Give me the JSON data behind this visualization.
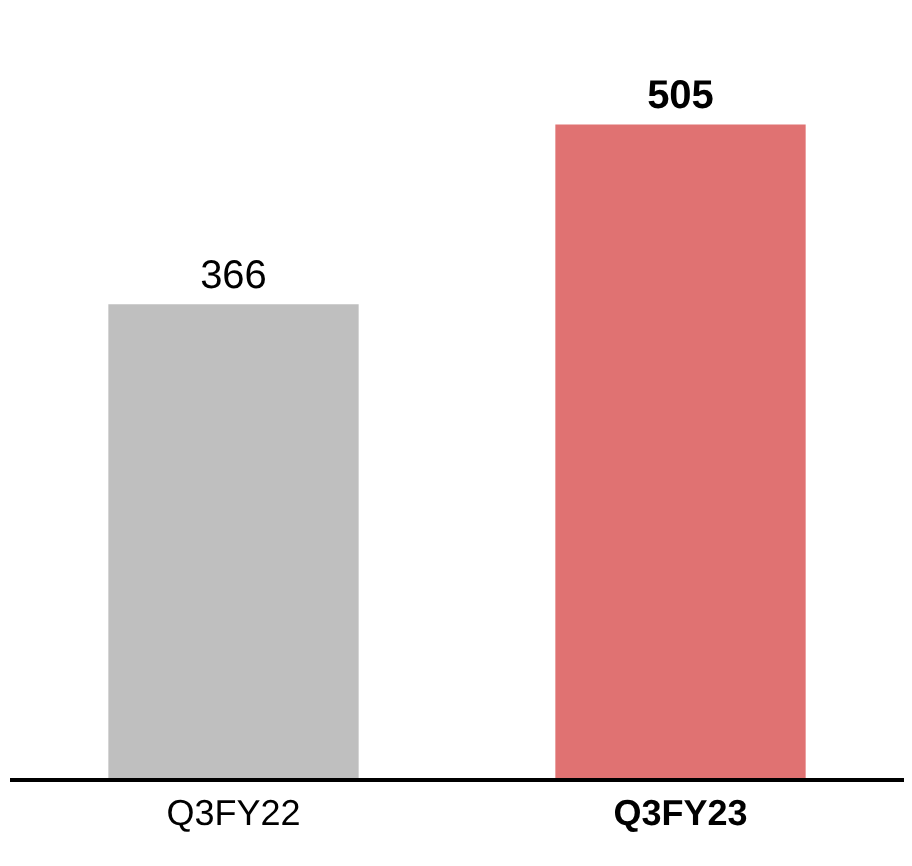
{
  "chart_data": {
    "type": "bar",
    "categories": [
      "Q3FY22",
      "Q3FY23"
    ],
    "values": [
      366,
      505
    ],
    "colors": [
      "#bfbfbf",
      "#e07272"
    ],
    "data_labels": true
  }
}
